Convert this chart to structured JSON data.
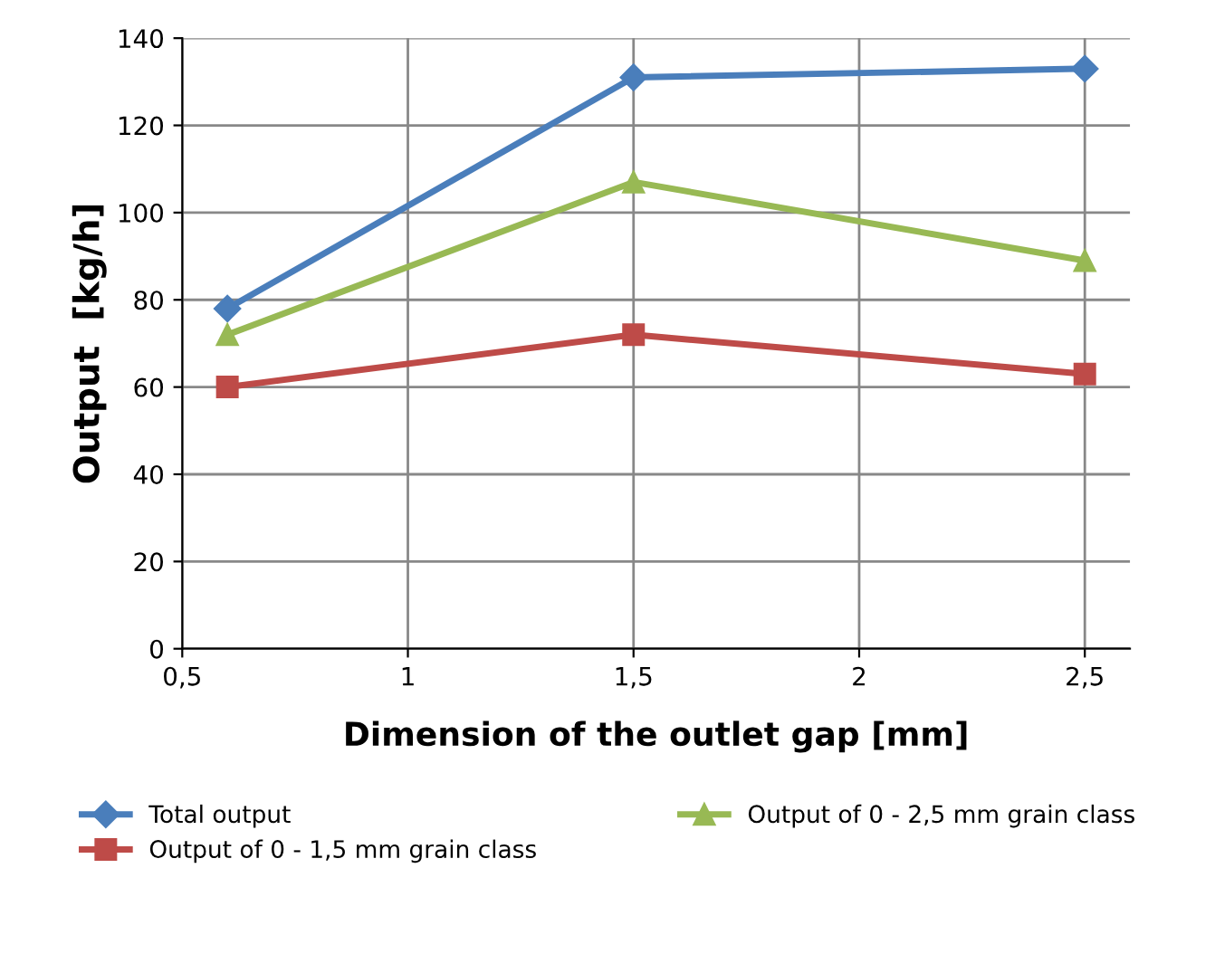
{
  "chart_data": {
    "type": "line",
    "xlabel": "Dimension of the outlet gap [mm]",
    "ylabel": "Output  [kg/h]",
    "x": [
      0.6,
      1.5,
      2.5
    ],
    "series": [
      {
        "name": "Total output",
        "color": "#4a7ebb",
        "marker": "diamond",
        "values": [
          78,
          131,
          133
        ]
      },
      {
        "name": "Output of 0 - 1,5 mm grain class",
        "color": "#be4b48",
        "marker": "square",
        "values": [
          60,
          72,
          63
        ]
      },
      {
        "name": "Output of 0 - 2,5 mm grain class",
        "color": "#98b954",
        "marker": "triangle",
        "values": [
          72,
          107,
          89
        ]
      }
    ],
    "xlim": [
      0.5,
      2.6
    ],
    "xticks": [
      {
        "value": 0.5,
        "label": "0,5"
      },
      1,
      {
        "value": 1.5,
        "label": "1,5"
      },
      2,
      {
        "value": 2.5,
        "label": "2,5"
      }
    ],
    "ylim": [
      0,
      140
    ],
    "yticks": [
      0,
      20,
      40,
      60,
      80,
      100,
      120,
      140
    ],
    "grid": true,
    "legend": "bottom",
    "line_style": "solid"
  }
}
